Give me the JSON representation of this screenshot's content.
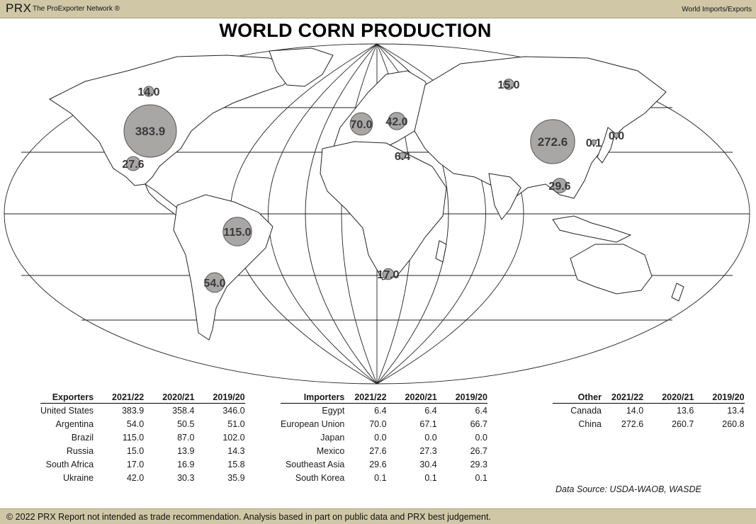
{
  "header": {
    "brand": "PRX",
    "network": "The ProExporter Network ®",
    "section": "World Imports/Exports"
  },
  "title": "WORLD CORN PRODUCTION",
  "bubbles": [
    {
      "label": "383.9",
      "value": 383.9
    },
    {
      "label": "14.0",
      "value": 14.0
    },
    {
      "label": "27.6",
      "value": 27.6
    },
    {
      "label": "115.0",
      "value": 115.0
    },
    {
      "label": "54.0",
      "value": 54.0
    },
    {
      "label": "70.0",
      "value": 70.0
    },
    {
      "label": "42.0",
      "value": 42.0
    },
    {
      "label": "6.4",
      "value": 6.4
    },
    {
      "label": "17.0",
      "value": 17.0
    },
    {
      "label": "15.0",
      "value": 15.0
    },
    {
      "label": "272.6",
      "value": 272.6
    },
    {
      "label": "0.1",
      "value": 0.1
    },
    {
      "label": "0.0",
      "value": 0.0
    },
    {
      "label": "29.6",
      "value": 29.6
    }
  ],
  "tables": {
    "exporters": {
      "headers": [
        "Exporters",
        "2021/22",
        "2020/21",
        "2019/20"
      ],
      "rows": [
        [
          "United States",
          "383.9",
          "358.4",
          "346.0"
        ],
        [
          "Argentina",
          "54.0",
          "50.5",
          "51.0"
        ],
        [
          "Brazil",
          "115.0",
          "87.0",
          "102.0"
        ],
        [
          "Russia",
          "15.0",
          "13.9",
          "14.3"
        ],
        [
          "South Africa",
          "17.0",
          "16.9",
          "15.8"
        ],
        [
          "Ukraine",
          "42.0",
          "30.3",
          "35.9"
        ]
      ]
    },
    "importers": {
      "headers": [
        "Importers",
        "2021/22",
        "2020/21",
        "2019/20"
      ],
      "rows": [
        [
          "Egypt",
          "6.4",
          "6.4",
          "6.4"
        ],
        [
          "European Union",
          "70.0",
          "67.1",
          "66.7"
        ],
        [
          "Japan",
          "0.0",
          "0.0",
          "0.0"
        ],
        [
          "Mexico",
          "27.6",
          "27.3",
          "26.7"
        ],
        [
          "Southeast Asia",
          "29.6",
          "30.4",
          "29.3"
        ],
        [
          "South Korea",
          "0.1",
          "0.1",
          "0.1"
        ]
      ]
    },
    "other": {
      "headers": [
        "Other",
        "2021/22",
        "2020/21",
        "2019/20"
      ],
      "rows": [
        [
          "Canada",
          "14.0",
          "13.6",
          "13.4"
        ],
        [
          "China",
          "272.6",
          "260.7",
          "260.8"
        ]
      ]
    }
  },
  "source": "Data Source: USDA-WAOB, WASDE",
  "footer": "© 2022 PRX  Report not intended as trade recommendation. Analysis based in part on public data and PRX best judgement.",
  "colors": {
    "band": "#cfc7a6",
    "bubble_fill": "#a9a6a6",
    "bubble_stroke": "#555555",
    "map_line": "#222222"
  }
}
